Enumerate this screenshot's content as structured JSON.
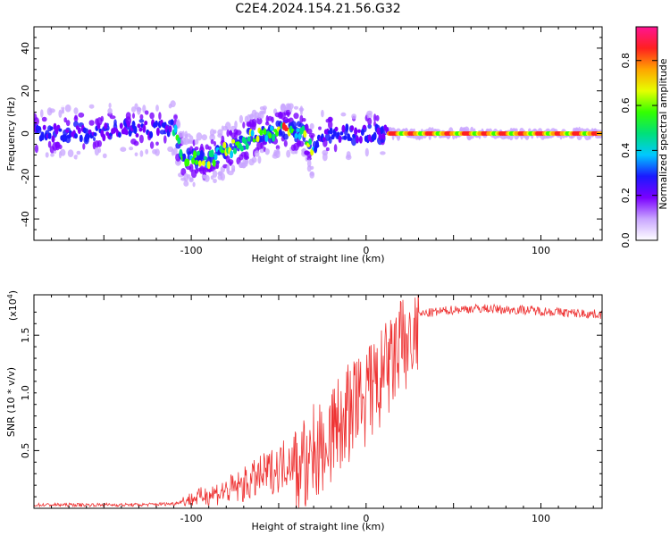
{
  "title": "C2E4.2024.154.21.56.G32",
  "chart_data": [
    {
      "type": "heatmap",
      "xlabel": "Height of straight line (km)",
      "ylabel": "Frequency (Hz)",
      "xlim": [
        -190,
        135
      ],
      "ylim": [
        -50,
        50
      ],
      "xticks": [
        -100,
        0,
        100
      ],
      "yticks": [
        -40,
        -20,
        0,
        20,
        40
      ],
      "grid": false,
      "colorbar": {
        "label": "Normalized spectral amplitude",
        "range": [
          0.0,
          0.95
        ],
        "ticks": [
          "0.0",
          "0.2",
          "0.4",
          "0.6",
          "0.8"
        ],
        "colormap": [
          "#ffffff",
          "#c9a6ff",
          "#7a00ff",
          "#1a1aff",
          "#00c8ff",
          "#00e07a",
          "#33ff00",
          "#e6ff00",
          "#ffa500",
          "#ff2020",
          "#ff1493"
        ]
      },
      "ridge": [
        {
          "x": -190,
          "y": 0
        },
        {
          "x": -150,
          "y": 1
        },
        {
          "x": -110,
          "y": 3
        },
        {
          "x": -105,
          "y": -12
        },
        {
          "x": -90,
          "y": -12
        },
        {
          "x": -75,
          "y": -6
        },
        {
          "x": -60,
          "y": 0
        },
        {
          "x": -45,
          "y": 2
        },
        {
          "x": -35,
          "y": 0
        },
        {
          "x": -30,
          "y": -10
        },
        {
          "x": -25,
          "y": 0
        },
        {
          "x": 0,
          "y": 0
        },
        {
          "x": 8,
          "y": 0
        },
        {
          "x": 12,
          "y": 0
        },
        {
          "x": 135,
          "y": 0
        }
      ]
    },
    {
      "type": "line",
      "xlabel": "Height of straight line (km)",
      "ylabel": "SNR (10 * v/v)",
      "yscale_note": "(x10",
      "yscale_exp": "4",
      "xlim": [
        -190,
        135
      ],
      "ylim": [
        0,
        1.85
      ],
      "xticks": [
        -100,
        0,
        100
      ],
      "yticks": [
        "0.5",
        "1.0",
        "1.5"
      ],
      "color": "#ee3333",
      "grid": false,
      "series": [
        {
          "x": [
            -190,
            -160,
            -130,
            -110,
            -100,
            -90,
            -80,
            -70,
            -60,
            -50,
            -40,
            -35,
            -30,
            -25,
            -20,
            -15,
            -10,
            -5,
            0,
            5,
            10,
            15,
            20,
            25,
            30,
            40,
            50,
            60,
            70,
            80,
            90,
            100,
            110,
            120,
            135
          ],
          "y": [
            0.03,
            0.03,
            0.03,
            0.04,
            0.08,
            0.12,
            0.15,
            0.2,
            0.28,
            0.35,
            0.48,
            0.55,
            0.65,
            0.75,
            0.82,
            0.9,
            1.0,
            1.08,
            1.15,
            1.22,
            1.32,
            1.45,
            1.56,
            1.63,
            1.68,
            1.7,
            1.72,
            1.73,
            1.73,
            1.72,
            1.72,
            1.71,
            1.7,
            1.69,
            1.68
          ]
        }
      ]
    }
  ]
}
